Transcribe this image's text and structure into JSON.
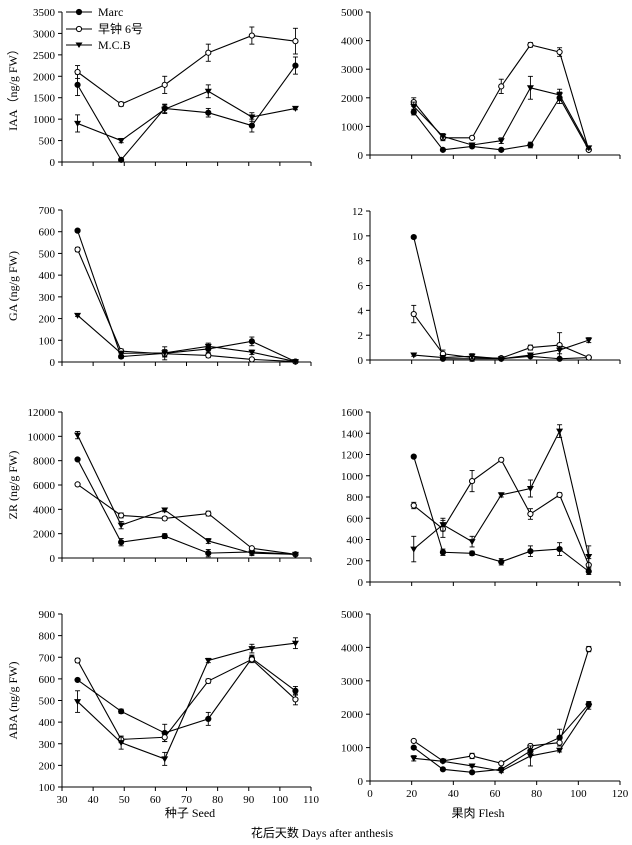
{
  "figure": {
    "xlabel": "花后天数 Days after anthesis",
    "left_column_label": "种子 Seed",
    "right_column_label": "果肉 Flesh"
  },
  "legend": [
    {
      "name": "Marc",
      "marker": "filled-circle"
    },
    {
      "name": "早钟 6号",
      "marker": "open-circle"
    },
    {
      "name": "M.C.B",
      "marker": "filled-triangle-down"
    }
  ],
  "chart_data": [
    {
      "id": "iaa-seed",
      "type": "line",
      "ylabel": "IAA（ng/g FW）",
      "xlim": [
        30,
        110
      ],
      "xticks": [
        30,
        40,
        50,
        60,
        70,
        80,
        90,
        100,
        110
      ],
      "show_xticklabels": false,
      "ylim": [
        0,
        3500
      ],
      "yticks": [
        0,
        500,
        1000,
        1500,
        2000,
        2500,
        3000,
        3500
      ],
      "x": [
        35,
        49,
        63,
        77,
        91,
        105
      ],
      "series": [
        {
          "name": "Marc",
          "values": [
            1800,
            50,
            1250,
            1150,
            850,
            2250
          ],
          "errors": [
            250,
            30,
            100,
            100,
            150,
            200
          ]
        },
        {
          "name": "早钟 6号",
          "values": [
            2100,
            1350,
            1800,
            2550,
            2950,
            2820
          ],
          "errors": [
            150,
            50,
            200,
            200,
            200,
            300
          ]
        },
        {
          "name": "M.C.B",
          "values": [
            900,
            500,
            1230,
            1650,
            1050,
            1250
          ],
          "errors": [
            200,
            50,
            100,
            150,
            100,
            30
          ]
        }
      ]
    },
    {
      "id": "iaa-flesh",
      "type": "line",
      "ylabel": "",
      "xlim": [
        0,
        120
      ],
      "xticks": [
        0,
        20,
        40,
        60,
        80,
        100,
        120
      ],
      "show_xticklabels": false,
      "ylim": [
        0,
        5000
      ],
      "yticks": [
        0,
        1000,
        2000,
        3000,
        4000,
        5000
      ],
      "x": [
        21,
        35,
        49,
        63,
        77,
        91,
        105
      ],
      "series": [
        {
          "name": "Marc",
          "values": [
            1500,
            180,
            300,
            180,
            350,
            2000,
            180
          ],
          "errors": [
            100,
            30,
            50,
            30,
            100,
            200,
            30
          ]
        },
        {
          "name": "早钟 6号",
          "values": [
            1850,
            600,
            600,
            2400,
            3850,
            3600,
            180
          ],
          "errors": [
            150,
            100,
            50,
            250,
            80,
            150,
            30
          ]
        },
        {
          "name": "M.C.B",
          "values": [
            1700,
            650,
            350,
            500,
            2350,
            2100,
            250
          ],
          "errors": [
            150,
            100,
            50,
            100,
            400,
            200,
            50
          ]
        }
      ]
    },
    {
      "id": "ga-seed",
      "type": "line",
      "ylabel": "GA (ng/g FW)",
      "xlim": [
        30,
        110
      ],
      "xticks": [
        30,
        40,
        50,
        60,
        70,
        80,
        90,
        100,
        110
      ],
      "show_xticklabels": false,
      "ylim": [
        0,
        700
      ],
      "yticks": [
        0,
        100,
        200,
        300,
        400,
        500,
        600,
        700
      ],
      "x": [
        35,
        49,
        63,
        77,
        91,
        105
      ],
      "series": [
        {
          "name": "Marc",
          "values": [
            605,
            25,
            40,
            60,
            95,
            2
          ],
          "errors": [
            5,
            8,
            30,
            15,
            20,
            3
          ]
        },
        {
          "name": "早钟 6号",
          "values": [
            518,
            50,
            38,
            30,
            12,
            2
          ],
          "errors": [
            10,
            10,
            15,
            10,
            5,
            3
          ]
        },
        {
          "name": "M.C.B",
          "values": [
            215,
            40,
            42,
            72,
            45,
            2
          ],
          "errors": [
            5,
            10,
            15,
            15,
            10,
            3
          ]
        }
      ]
    },
    {
      "id": "ga-flesh",
      "type": "line",
      "ylabel": "",
      "xlim": [
        0,
        120
      ],
      "xticks": [
        0,
        20,
        40,
        60,
        80,
        100,
        120
      ],
      "show_xticklabels": false,
      "ylim": [
        0,
        12
      ],
      "yticks": [
        0,
        2,
        4,
        6,
        8,
        10,
        12
      ],
      "x": [
        21,
        35,
        49,
        63,
        77,
        91,
        105
      ],
      "series": [
        {
          "name": "Marc",
          "values": [
            9.9,
            0.1,
            0.1,
            0.1,
            0.3,
            0.1,
            0.2
          ],
          "errors": [
            0.1,
            0.1,
            0.1,
            0.05,
            0.1,
            0.1,
            0.05
          ]
        },
        {
          "name": "早钟 6号",
          "values": [
            3.7,
            0.5,
            0.2,
            0.15,
            1.0,
            1.2,
            0.2
          ],
          "errors": [
            0.7,
            0.3,
            0.3,
            0.1,
            0.2,
            1.0,
            0.1
          ]
        },
        {
          "name": "M.C.B",
          "values": [
            0.4,
            0.2,
            0.3,
            0.1,
            0.4,
            0.8,
            1.6
          ],
          "errors": [
            0.1,
            0.1,
            0.2,
            0.05,
            0.1,
            0.3,
            0.2
          ]
        }
      ]
    },
    {
      "id": "zr-seed",
      "type": "line",
      "ylabel": "ZR (ng/g FW)",
      "xlim": [
        30,
        110
      ],
      "xticks": [
        30,
        40,
        50,
        60,
        70,
        80,
        90,
        100,
        110
      ],
      "show_xticklabels": false,
      "ylim": [
        0,
        12000
      ],
      "yticks": [
        0,
        2000,
        4000,
        6000,
        8000,
        10000,
        12000
      ],
      "x": [
        35,
        49,
        63,
        77,
        91,
        105
      ],
      "series": [
        {
          "name": "Marc",
          "values": [
            8100,
            1300,
            1800,
            400,
            500,
            300
          ],
          "errors": [
            100,
            300,
            200,
            300,
            200,
            100
          ]
        },
        {
          "name": "早钟 6号",
          "values": [
            6050,
            3500,
            3250,
            3650,
            800,
            300
          ],
          "errors": [
            100,
            200,
            150,
            200,
            100,
            80
          ]
        },
        {
          "name": "M.C.B",
          "values": [
            10100,
            2700,
            3950,
            1400,
            400,
            300
          ],
          "errors": [
            300,
            300,
            150,
            200,
            200,
            80
          ]
        }
      ]
    },
    {
      "id": "zr-flesh",
      "type": "line",
      "ylabel": "",
      "xlim": [
        0,
        120
      ],
      "xticks": [
        0,
        20,
        40,
        60,
        80,
        100,
        120
      ],
      "show_xticklabels": false,
      "ylim": [
        0,
        1600
      ],
      "yticks": [
        0,
        200,
        400,
        600,
        800,
        1000,
        1200,
        1400,
        1600
      ],
      "x": [
        21,
        35,
        49,
        63,
        77,
        91,
        105
      ],
      "series": [
        {
          "name": "Marc",
          "values": [
            1180,
            280,
            270,
            190,
            290,
            310,
            100
          ],
          "errors": [
            10,
            30,
            20,
            30,
            50,
            60,
            30
          ]
        },
        {
          "name": "早钟 6号",
          "values": [
            720,
            500,
            950,
            1150,
            640,
            820,
            160
          ],
          "errors": [
            30,
            80,
            100,
            10,
            50,
            20,
            60
          ]
        },
        {
          "name": "M.C.B",
          "values": [
            310,
            540,
            380,
            820,
            880,
            1420,
            240
          ],
          "errors": [
            120,
            60,
            50,
            20,
            80,
            60,
            100
          ]
        }
      ]
    },
    {
      "id": "aba-seed",
      "type": "line",
      "ylabel": "ABA (ng/g FW)",
      "xlim": [
        30,
        110
      ],
      "xticks": [
        30,
        40,
        50,
        60,
        70,
        80,
        90,
        100,
        110
      ],
      "show_xticklabels": true,
      "ylim": [
        100,
        900
      ],
      "yticks": [
        100,
        200,
        300,
        400,
        500,
        600,
        700,
        800,
        900
      ],
      "x": [
        35,
        49,
        63,
        77,
        91,
        105
      ],
      "series": [
        {
          "name": "Marc",
          "values": [
            595,
            450,
            350,
            415,
            695,
            545
          ],
          "errors": [
            5,
            10,
            40,
            30,
            15,
            20
          ]
        },
        {
          "name": "早钟 6号",
          "values": [
            685,
            320,
            330,
            590,
            690,
            505
          ],
          "errors": [
            10,
            15,
            20,
            10,
            15,
            25
          ]
        },
        {
          "name": "M.C.B",
          "values": [
            495,
            305,
            230,
            685,
            740,
            765
          ],
          "errors": [
            50,
            30,
            30,
            10,
            20,
            25
          ]
        }
      ]
    },
    {
      "id": "aba-flesh",
      "type": "line",
      "ylabel": "",
      "xlim": [
        0,
        120
      ],
      "xticks": [
        0,
        20,
        40,
        60,
        80,
        100,
        120
      ],
      "show_xticklabels": true,
      "ylim": [
        0,
        5000
      ],
      "yticks": [
        0,
        1000,
        2000,
        3000,
        4000,
        5000
      ],
      "x": [
        21,
        35,
        49,
        63,
        77,
        91,
        105
      ],
      "series": [
        {
          "name": "Marc",
          "values": [
            1000,
            350,
            260,
            350,
            900,
            1300,
            2300
          ],
          "errors": [
            30,
            30,
            20,
            50,
            100,
            250,
            80
          ]
        },
        {
          "name": "早钟 6号",
          "values": [
            1200,
            600,
            750,
            530,
            1050,
            1150,
            3950
          ],
          "errors": [
            30,
            30,
            80,
            30,
            50,
            100,
            80
          ]
        },
        {
          "name": "M.C.B",
          "values": [
            680,
            590,
            450,
            300,
            750,
            920,
            2230
          ],
          "errors": [
            80,
            30,
            30,
            50,
            300,
            50,
            80
          ]
        }
      ]
    }
  ]
}
